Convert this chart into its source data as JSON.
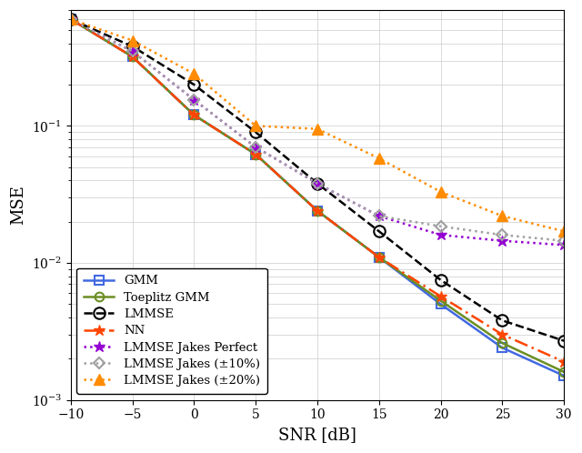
{
  "snr": [
    -10,
    -5,
    0,
    5,
    10,
    15,
    20,
    25,
    30
  ],
  "GMM": [
    0.6,
    0.32,
    0.12,
    0.062,
    0.024,
    0.011,
    0.005,
    0.0024,
    0.0015
  ],
  "Toeplitz_GMM": [
    0.6,
    0.32,
    0.12,
    0.062,
    0.024,
    0.011,
    0.0053,
    0.0026,
    0.0016
  ],
  "LMMSE": [
    0.6,
    0.38,
    0.2,
    0.09,
    0.038,
    0.017,
    0.0075,
    0.0038,
    0.0027
  ],
  "NN": [
    0.6,
    0.32,
    0.12,
    0.062,
    0.024,
    0.011,
    0.0057,
    0.003,
    0.0019
  ],
  "LMMSE_Jakes_Perf": [
    0.6,
    0.35,
    0.155,
    0.07,
    0.038,
    0.022,
    0.016,
    0.0145,
    0.0135
  ],
  "LMMSE_Jakes_10": [
    0.6,
    0.35,
    0.155,
    0.07,
    0.038,
    0.022,
    0.0185,
    0.016,
    0.0145
  ],
  "LMMSE_Jakes_20": [
    0.6,
    0.42,
    0.24,
    0.1,
    0.095,
    0.058,
    0.033,
    0.022,
    0.017
  ],
  "xlabel": "SNR [dB]",
  "ylabel": "MSE",
  "xlim": [
    -10,
    30
  ],
  "ylim": [
    0.001,
    0.7
  ],
  "xticks": [
    -10,
    -5,
    0,
    5,
    10,
    15,
    20,
    25,
    30
  ],
  "legend_labels": [
    "GMM",
    "Toeplitz GMM",
    "LMMSE",
    "NN",
    "LMMSE Jakes Perfect",
    "LMMSE Jakes (±10%)",
    "LMMSE Jakes (±20%)"
  ],
  "colors": {
    "GMM": "#4169E1",
    "Toeplitz_GMM": "#6B8E23",
    "LMMSE": "#000000",
    "NN": "#FF4500",
    "LMMSE_Jakes_Perf": "#9400D3",
    "LMMSE_Jakes_10": "#A0A0A0",
    "LMMSE_Jakes_20": "#FF8C00"
  },
  "background_color": "#FFFFFF",
  "grid_color": "#CCCCCC"
}
